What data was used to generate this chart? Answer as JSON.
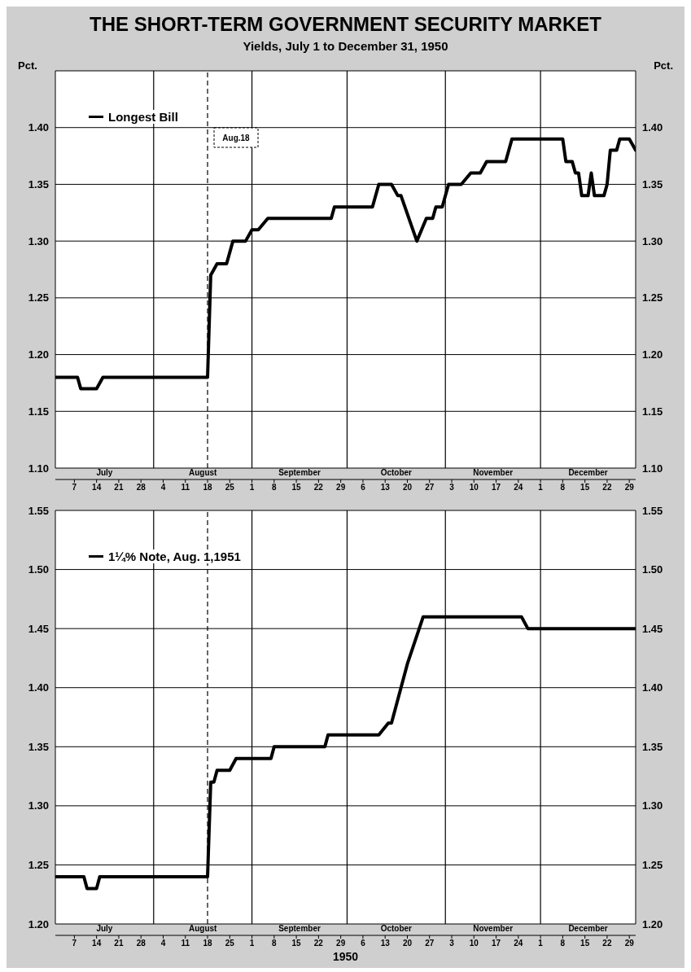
{
  "chart_data": [
    {
      "type": "line",
      "title": "THE SHORT-TERM GOVERNMENT SECURITY MARKET",
      "subtitle": "Yields, July 1 to December 31, 1950",
      "ylabel": "Pct.",
      "y2label": "Pct.",
      "xlim": [
        "1950-07-01",
        "1950-12-31"
      ],
      "xticks": [
        {
          "value": "1950-07-07",
          "label": "7"
        },
        {
          "value": "1950-07-14",
          "label": "14"
        },
        {
          "value": "1950-07-21",
          "label": "21"
        },
        {
          "value": "1950-07-28",
          "label": "28"
        },
        {
          "value": "1950-08-04",
          "label": "4"
        },
        {
          "value": "1950-08-11",
          "label": "11"
        },
        {
          "value": "1950-08-18",
          "label": "18"
        },
        {
          "value": "1950-08-25",
          "label": "25"
        },
        {
          "value": "1950-09-01",
          "label": "1"
        },
        {
          "value": "1950-09-08",
          "label": "8"
        },
        {
          "value": "1950-09-15",
          "label": "15"
        },
        {
          "value": "1950-09-22",
          "label": "22"
        },
        {
          "value": "1950-09-29",
          "label": "29"
        },
        {
          "value": "1950-10-06",
          "label": "6"
        },
        {
          "value": "1950-10-13",
          "label": "13"
        },
        {
          "value": "1950-10-20",
          "label": "20"
        },
        {
          "value": "1950-10-27",
          "label": "27"
        },
        {
          "value": "1950-11-03",
          "label": "3"
        },
        {
          "value": "1950-11-10",
          "label": "10"
        },
        {
          "value": "1950-11-17",
          "label": "17"
        },
        {
          "value": "1950-11-24",
          "label": "24"
        },
        {
          "value": "1950-12-01",
          "label": "1"
        },
        {
          "value": "1950-12-08",
          "label": "8"
        },
        {
          "value": "1950-12-15",
          "label": "15"
        },
        {
          "value": "1950-12-22",
          "label": "22"
        },
        {
          "value": "1950-12-29",
          "label": "29"
        }
      ],
      "ylim": [
        1.1,
        1.45
      ],
      "yticks": [
        {
          "value": 1.1,
          "label": "1.10"
        },
        {
          "value": 1.15,
          "label": "1.15"
        },
        {
          "value": 1.2,
          "label": "1.20"
        },
        {
          "value": 1.25,
          "label": "1.25"
        },
        {
          "value": 1.3,
          "label": "1.30"
        },
        {
          "value": 1.35,
          "label": "1.35"
        },
        {
          "value": 1.4,
          "label": "1.40"
        }
      ],
      "y2lim": [
        1.1,
        1.45
      ],
      "y2ticks": [
        {
          "value": 1.1,
          "label": "1.10"
        },
        {
          "value": 1.15,
          "label": "1.15"
        },
        {
          "value": 1.2,
          "label": "1.20"
        },
        {
          "value": 1.25,
          "label": "1.25"
        },
        {
          "value": 1.3,
          "label": "1.30"
        },
        {
          "value": 1.35,
          "label": "1.35"
        },
        {
          "value": 1.4,
          "label": "1.40"
        }
      ],
      "grid": "y",
      "legend": "top left",
      "ref_lines": [
        {
          "axis": "x",
          "value": "1950-08-01",
          "color": "#000000"
        },
        {
          "axis": "x",
          "value": "1950-09-01",
          "color": "#000000"
        },
        {
          "axis": "x",
          "value": "1950-10-01",
          "color": "#000000"
        },
        {
          "axis": "x",
          "value": "1950-11-01",
          "color": "#000000"
        },
        {
          "axis": "x",
          "value": "1950-12-01",
          "color": "#000000"
        },
        {
          "axis": "x",
          "value": "1950-08-18",
          "label": "Aug.18",
          "color": "#000000",
          "line_style": "dashed"
        }
      ],
      "annotations": [
        "July",
        "August",
        "September",
        "October",
        "November",
        "December"
      ],
      "series": [
        {
          "name": "Longest Bill",
          "color": "#000000",
          "x": [
            "1950-07-01",
            "1950-07-08",
            "1950-07-09",
            "1950-07-14",
            "1950-07-16",
            "1950-08-18",
            "1950-08-19",
            "1950-08-21",
            "1950-08-24",
            "1950-08-26",
            "1950-08-30",
            "1950-09-01",
            "1950-09-03",
            "1950-09-06",
            "1950-09-26",
            "1950-09-27",
            "1950-10-09",
            "1950-10-11",
            "1950-10-15",
            "1950-10-17",
            "1950-10-18",
            "1950-10-23",
            "1950-10-26",
            "1950-10-28",
            "1950-10-29",
            "1950-10-31",
            "1950-11-02",
            "1950-11-06",
            "1950-11-09",
            "1950-11-12",
            "1950-11-14",
            "1950-11-20",
            "1950-11-22",
            "1950-12-08",
            "1950-12-09",
            "1950-12-11",
            "1950-12-12",
            "1950-12-13",
            "1950-12-14",
            "1950-12-16",
            "1950-12-17",
            "1950-12-18",
            "1950-12-21",
            "1950-12-22",
            "1950-12-23",
            "1950-12-25",
            "1950-12-26",
            "1950-12-29",
            "1950-12-31"
          ],
          "values": [
            1.18,
            1.18,
            1.17,
            1.17,
            1.18,
            1.18,
            1.27,
            1.28,
            1.28,
            1.3,
            1.3,
            1.31,
            1.31,
            1.32,
            1.32,
            1.33,
            1.33,
            1.35,
            1.35,
            1.34,
            1.34,
            1.3,
            1.32,
            1.32,
            1.33,
            1.33,
            1.35,
            1.35,
            1.36,
            1.36,
            1.37,
            1.37,
            1.39,
            1.39,
            1.37,
            1.37,
            1.36,
            1.36,
            1.34,
            1.34,
            1.36,
            1.34,
            1.34,
            1.35,
            1.38,
            1.38,
            1.39,
            1.39,
            1.38
          ]
        }
      ]
    },
    {
      "type": "line",
      "xlabel": "1950",
      "xlim": [
        "1950-07-01",
        "1950-12-31"
      ],
      "xticks": [
        {
          "value": "1950-07-07",
          "label": "7"
        },
        {
          "value": "1950-07-14",
          "label": "14"
        },
        {
          "value": "1950-07-21",
          "label": "21"
        },
        {
          "value": "1950-07-28",
          "label": "28"
        },
        {
          "value": "1950-08-04",
          "label": "4"
        },
        {
          "value": "1950-08-11",
          "label": "11"
        },
        {
          "value": "1950-08-18",
          "label": "18"
        },
        {
          "value": "1950-08-25",
          "label": "25"
        },
        {
          "value": "1950-09-01",
          "label": "1"
        },
        {
          "value": "1950-09-08",
          "label": "8"
        },
        {
          "value": "1950-09-15",
          "label": "15"
        },
        {
          "value": "1950-09-22",
          "label": "22"
        },
        {
          "value": "1950-09-29",
          "label": "29"
        },
        {
          "value": "1950-10-06",
          "label": "6"
        },
        {
          "value": "1950-10-13",
          "label": "13"
        },
        {
          "value": "1950-10-20",
          "label": "20"
        },
        {
          "value": "1950-10-27",
          "label": "27"
        },
        {
          "value": "1950-11-03",
          "label": "3"
        },
        {
          "value": "1950-11-10",
          "label": "10"
        },
        {
          "value": "1950-11-17",
          "label": "17"
        },
        {
          "value": "1950-11-24",
          "label": "24"
        },
        {
          "value": "1950-12-01",
          "label": "1"
        },
        {
          "value": "1950-12-08",
          "label": "8"
        },
        {
          "value": "1950-12-15",
          "label": "15"
        },
        {
          "value": "1950-12-22",
          "label": "22"
        },
        {
          "value": "1950-12-29",
          "label": "29"
        }
      ],
      "ylim": [
        1.2,
        1.55
      ],
      "yticks": [
        {
          "value": 1.2,
          "label": "1.20"
        },
        {
          "value": 1.25,
          "label": "1.25"
        },
        {
          "value": 1.3,
          "label": "1.30"
        },
        {
          "value": 1.35,
          "label": "1.35"
        },
        {
          "value": 1.4,
          "label": "1.40"
        },
        {
          "value": 1.45,
          "label": "1.45"
        },
        {
          "value": 1.5,
          "label": "1.50"
        },
        {
          "value": 1.55,
          "label": "1.55"
        }
      ],
      "y2lim": [
        1.2,
        1.55
      ],
      "y2ticks": [
        {
          "value": 1.2,
          "label": "1.20"
        },
        {
          "value": 1.25,
          "label": "1.25"
        },
        {
          "value": 1.3,
          "label": "1.30"
        },
        {
          "value": 1.35,
          "label": "1.35"
        },
        {
          "value": 1.4,
          "label": "1.40"
        },
        {
          "value": 1.45,
          "label": "1.45"
        },
        {
          "value": 1.5,
          "label": "1.50"
        },
        {
          "value": 1.55,
          "label": "1.55"
        }
      ],
      "grid": "y",
      "legend": "top left",
      "ref_lines": [
        {
          "axis": "x",
          "value": "1950-08-01",
          "color": "#000000"
        },
        {
          "axis": "x",
          "value": "1950-09-01",
          "color": "#000000"
        },
        {
          "axis": "x",
          "value": "1950-10-01",
          "color": "#000000"
        },
        {
          "axis": "x",
          "value": "1950-11-01",
          "color": "#000000"
        },
        {
          "axis": "x",
          "value": "1950-12-01",
          "color": "#000000"
        },
        {
          "axis": "x",
          "value": "1950-08-18",
          "color": "#000000",
          "line_style": "dashed"
        }
      ],
      "annotations": [
        "July",
        "August",
        "September",
        "October",
        "November",
        "December"
      ],
      "series": [
        {
          "name": "1¼% Note, Aug. 1,1951",
          "color": "#000000",
          "x": [
            "1950-07-01",
            "1950-07-10",
            "1950-07-11",
            "1950-07-14",
            "1950-07-15",
            "1950-08-18",
            "1950-08-19",
            "1950-08-20",
            "1950-08-21",
            "1950-08-25",
            "1950-08-27",
            "1950-09-01",
            "1950-09-07",
            "1950-09-08",
            "1950-09-24",
            "1950-09-25",
            "1950-10-11",
            "1950-10-14",
            "1950-10-15",
            "1950-10-20",
            "1950-10-25",
            "1950-11-25",
            "1950-11-27",
            "1950-12-31"
          ],
          "values": [
            1.24,
            1.24,
            1.23,
            1.23,
            1.24,
            1.24,
            1.32,
            1.32,
            1.33,
            1.33,
            1.34,
            1.34,
            1.34,
            1.35,
            1.35,
            1.36,
            1.36,
            1.37,
            1.37,
            1.42,
            1.46,
            1.46,
            1.45,
            1.45
          ]
        }
      ]
    }
  ]
}
